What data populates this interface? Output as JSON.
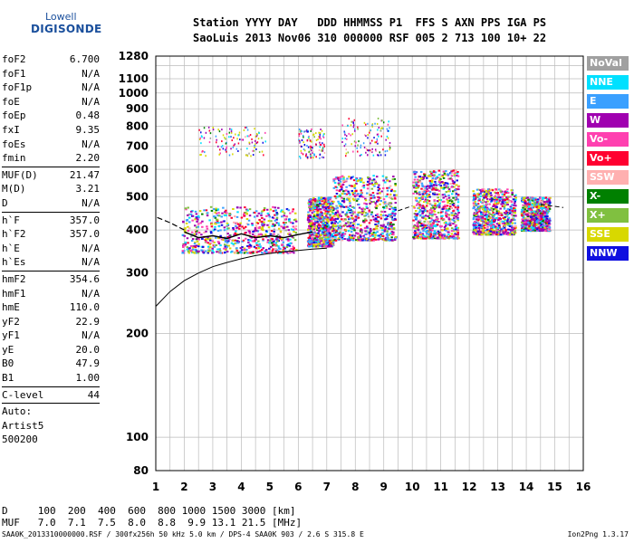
{
  "logo": {
    "line1": "Lowell",
    "line2": "DIGISONDE"
  },
  "header": {
    "line1": "Station YYYY DAY   DDD HHMMSS P1  FFS S AXN PPS IGA PS",
    "line2": "SaoLuis 2013 Nov06 310 000000 RSF 005 2 713 100 10+ 22"
  },
  "params": [
    {
      "label": "foF2",
      "value": "6.700"
    },
    {
      "label": "foF1",
      "value": "N/A"
    },
    {
      "label": "foF1p",
      "value": "N/A"
    },
    {
      "label": "foE",
      "value": "N/A"
    },
    {
      "label": "foEp",
      "value": "0.48"
    },
    {
      "label": "fxI",
      "value": "9.35"
    },
    {
      "label": "foEs",
      "value": "N/A"
    },
    {
      "label": "fmin",
      "value": "2.20"
    },
    {
      "sep": true
    },
    {
      "label": "MUF(D)",
      "value": "21.47"
    },
    {
      "label": "M(D)",
      "value": "3.21"
    },
    {
      "label": "D",
      "value": "N/A"
    },
    {
      "sep": true
    },
    {
      "label": "h`F",
      "value": "357.0"
    },
    {
      "label": "h`F2",
      "value": "357.0"
    },
    {
      "label": "h`E",
      "value": "N/A"
    },
    {
      "label": "h`Es",
      "value": "N/A"
    },
    {
      "sep": true
    },
    {
      "label": "hmF2",
      "value": "354.6"
    },
    {
      "label": "hmF1",
      "value": "N/A"
    },
    {
      "label": "hmE",
      "value": "110.0"
    },
    {
      "label": "yF2",
      "value": "22.9"
    },
    {
      "label": "yF1",
      "value": "N/A"
    },
    {
      "label": "yE",
      "value": "20.0"
    },
    {
      "label": "B0",
      "value": "47.9"
    },
    {
      "label": "B1",
      "value": "1.00"
    },
    {
      "sep": true
    },
    {
      "label": "C-level",
      "value": "44"
    },
    {
      "sep": true
    },
    {
      "text": "Auto:"
    },
    {
      "text": "Artist5"
    },
    {
      "text": "500200"
    }
  ],
  "muf_table": {
    "d_row": "D     100  200  400  600  800 1000 1500 3000 [km]",
    "muf_row": "MUF   7.0  7.1  7.5  8.0  8.8  9.9 13.1 21.5 [MHz]"
  },
  "footer": {
    "left": "SAA0K_2013310000000.RSF / 300fx256h 50 kHz 5.0 km / DPS-4 SAA0K 903 / 2.6 S 315.8 E",
    "right": "Ion2Png 1.3.17"
  },
  "legend": [
    {
      "label": "NoVal",
      "color": "#a0a0a0"
    },
    {
      "label": "NNE",
      "color": "#00e0ff"
    },
    {
      "label": "E",
      "color": "#3aa0ff"
    },
    {
      "label": "W",
      "color": "#a000b0"
    },
    {
      "label": "Vo-",
      "color": "#ff40b0"
    },
    {
      "label": "Vo+",
      "color": "#ff0030"
    },
    {
      "label": "SSW",
      "color": "#ffb0b0"
    },
    {
      "label": "X-",
      "color": "#008000"
    },
    {
      "label": "X+",
      "color": "#80c040"
    },
    {
      "label": "SSE",
      "color": "#d8d800"
    },
    {
      "label": "NNW",
      "color": "#1010e0"
    }
  ],
  "chart_data": {
    "type": "scatter",
    "xlim": [
      1,
      16
    ],
    "ylim": [
      80,
      1280
    ],
    "y_scale": "log",
    "grid": true,
    "x_ticks": [
      1,
      2,
      3,
      4,
      5,
      6,
      7,
      8,
      9,
      10,
      11,
      12,
      13,
      14,
      15,
      16
    ],
    "y_ticks": [
      80,
      100,
      200,
      300,
      400,
      500,
      600,
      700,
      800,
      900,
      1000,
      1100,
      1280
    ],
    "clusters": [
      {
        "f": [
          1.9,
          5.9
        ],
        "h": [
          345,
          470
        ]
      },
      {
        "f": [
          6.3,
          7.2
        ],
        "h": [
          360,
          500
        ]
      },
      {
        "f": [
          7.2,
          9.4
        ],
        "h": [
          375,
          580
        ]
      },
      {
        "f": [
          10.0,
          11.6
        ],
        "h": [
          380,
          600
        ]
      },
      {
        "f": [
          12.1,
          13.6
        ],
        "h": [
          390,
          530
        ]
      },
      {
        "f": [
          13.8,
          14.8
        ],
        "h": [
          400,
          500
        ]
      },
      {
        "f": [
          2.5,
          4.9
        ],
        "h": [
          660,
          800
        ]
      },
      {
        "f": [
          6.0,
          6.9
        ],
        "h": [
          650,
          790
        ]
      },
      {
        "f": [
          7.5,
          9.2
        ],
        "h": [
          660,
          850
        ]
      }
    ],
    "profile": [
      [
        1,
        240
      ],
      [
        1.5,
        265
      ],
      [
        2,
        285
      ],
      [
        2.5,
        300
      ],
      [
        3,
        313
      ],
      [
        3.5,
        322
      ],
      [
        4,
        330
      ],
      [
        4.5,
        337
      ],
      [
        5,
        342
      ],
      [
        5.5,
        346
      ],
      [
        6,
        349
      ],
      [
        6.5,
        352
      ],
      [
        7.0,
        354
      ]
    ],
    "trace_dashed": [
      [
        1.05,
        435
      ],
      [
        1.5,
        420
      ],
      [
        2.0,
        400
      ]
    ],
    "trace_solid": [
      [
        2.0,
        395
      ],
      [
        2.5,
        380
      ],
      [
        3.0,
        385
      ],
      [
        3.5,
        378
      ],
      [
        4.0,
        390
      ],
      [
        4.5,
        380
      ],
      [
        5.0,
        385
      ],
      [
        5.5,
        380
      ],
      [
        6.0,
        388
      ],
      [
        6.5,
        395
      ]
    ],
    "trace2_dashed": [
      [
        9.5,
        455
      ],
      [
        10.0,
        470
      ]
    ],
    "trace3_dashed": [
      [
        14.5,
        475
      ],
      [
        15.3,
        465
      ]
    ]
  }
}
